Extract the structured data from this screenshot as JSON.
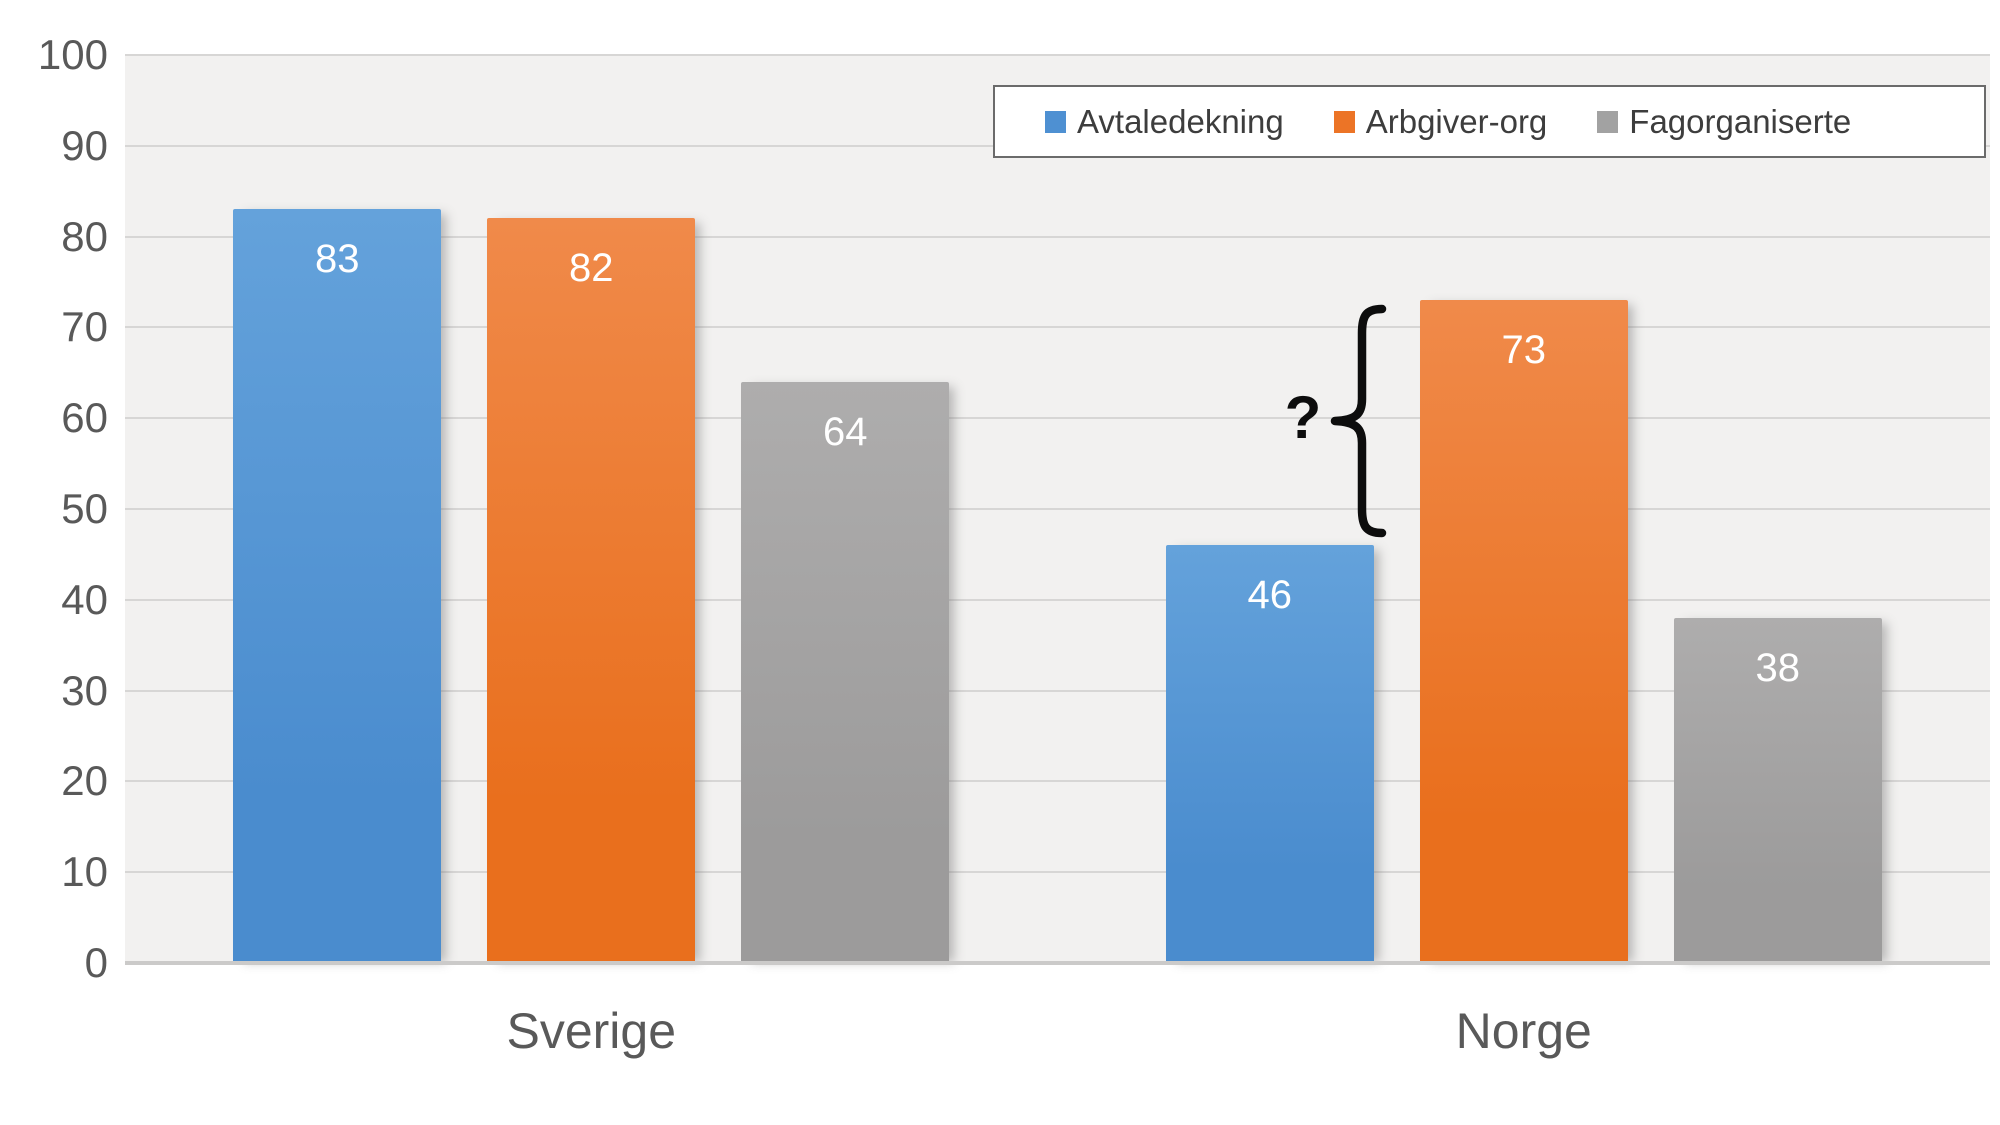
{
  "chart_data": {
    "type": "bar",
    "categories": [
      "Sverige",
      "Norge"
    ],
    "series": [
      {
        "name": "Avtaledekning",
        "color": "#4a8cce",
        "color_light": "#64a2db",
        "swatch": "#4e90d2",
        "values": [
          83,
          46
        ]
      },
      {
        "name": "Arbgiver-org",
        "color": "#e96f1d",
        "color_light": "#f08a4a",
        "swatch": "#ec7426",
        "values": [
          82,
          73
        ]
      },
      {
        "name": "Fagorganiserte",
        "color": "#9c9b9b",
        "color_light": "#aeadad",
        "swatch": "#a2a2a2",
        "values": [
          64,
          38
        ]
      }
    ],
    "ylim": [
      0,
      100
    ],
    "yticks": [
      0,
      10,
      20,
      30,
      40,
      50,
      60,
      70,
      80,
      90,
      100
    ],
    "grid": true,
    "legend_position": "top-right",
    "plot_bg": "#f2f1f0",
    "gridline_color": "#d7d6d5",
    "annotation": {
      "symbol": "?",
      "target": "gap between Norge Avtaledekning (46) and Arbgiver-org (73), marked with a curly brace"
    }
  }
}
